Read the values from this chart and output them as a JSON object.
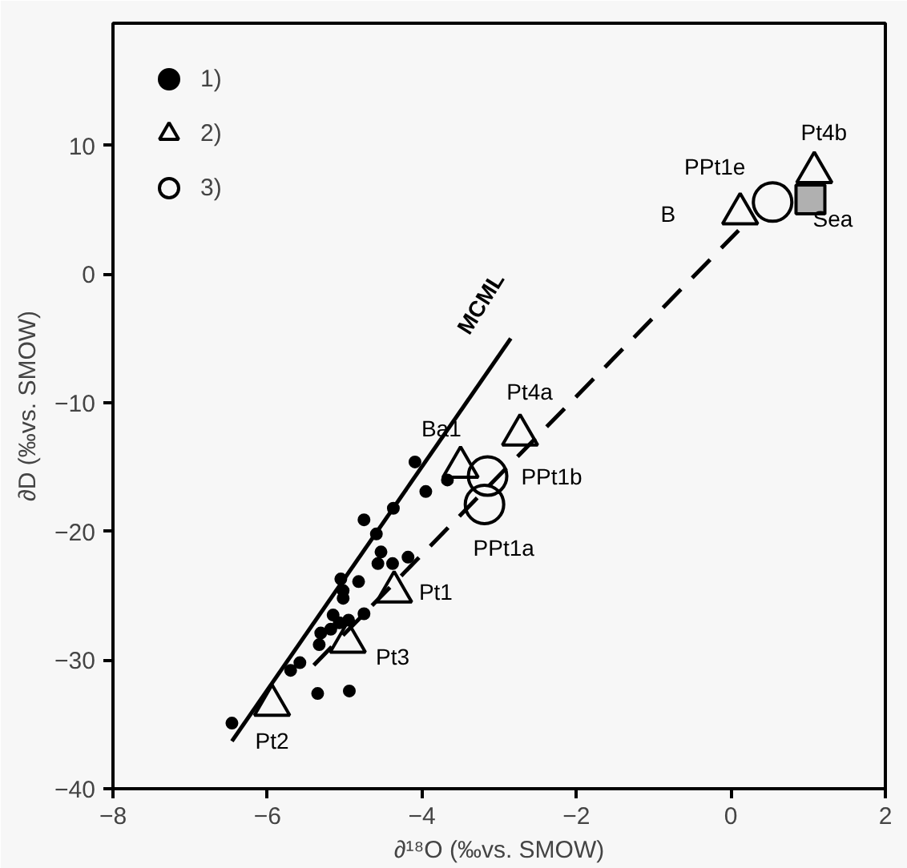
{
  "chart_data": {
    "type": "scatter",
    "xlabel": "∂¹⁸O (‰vs. SMOW)",
    "ylabel": "∂D (‰vs. SMOW)",
    "xlim": [
      -8,
      2
    ],
    "ylim": [
      -40,
      19.5
    ],
    "xticks": [
      -8,
      -6,
      -4,
      -2,
      0,
      2
    ],
    "yticks": [
      -40,
      -30,
      -20,
      -10,
      0,
      10
    ],
    "grid": false,
    "legend": "top left",
    "series": [
      {
        "name": "1)",
        "marker": "circle",
        "color": "#000000",
        "x": [
          -4.09,
          -3.95,
          -3.67,
          -4.37,
          -4.75,
          -4.59,
          -4.53,
          -4.57,
          -4.38,
          -4.18,
          -5.05,
          -4.82,
          -5.02,
          -5.02,
          -4.75,
          -5.15,
          -5.07,
          -4.95,
          -5.31,
          -5.18,
          -5.33,
          -5.58,
          -5.7,
          -5.35,
          -4.94,
          -6.46
        ],
        "values": [
          -14.6,
          -16.9,
          -16.0,
          -18.2,
          -19.1,
          -20.2,
          -21.6,
          -22.5,
          -22.5,
          -22.0,
          -23.7,
          -23.9,
          -24.6,
          -25.2,
          -26.4,
          -26.5,
          -27.1,
          -26.9,
          -27.9,
          -27.6,
          -28.8,
          -30.2,
          -30.8,
          -32.6,
          -32.4,
          -34.9
        ]
      },
      {
        "name": "2)",
        "marker": "triangle",
        "color": "#000000",
        "x": [
          -5.94,
          -4.96,
          -4.36,
          -2.73,
          -3.5,
          0.12,
          1.08
        ],
        "values": [
          -33.5,
          -28.6,
          -24.7,
          -12.5,
          -15.0,
          4.7,
          7.9
        ]
      },
      {
        "name": "3)",
        "marker": "circle",
        "color": "#000000",
        "x": [
          -3.15,
          -3.19,
          0.54
        ],
        "values": [
          -15.7,
          -17.9,
          5.6
        ]
      },
      {
        "marker": "square",
        "color": "#b0b0b0",
        "x": [
          1.03
        ],
        "values": [
          5.8
        ]
      },
      {
        "type": "line",
        "line_style": "solid",
        "color": "#000000",
        "x": [
          -6.46,
          -2.85
        ],
        "values": [
          -36.3,
          -5.0
        ]
      },
      {
        "type": "line",
        "line_style": "dashed",
        "color": "#000000",
        "x": [
          -5.4,
          0.1
        ],
        "values": [
          -30.4,
          3.4
        ]
      }
    ],
    "annotations": [
      "Pt4b",
      "PPt1e",
      "B",
      "Sea",
      "Pt4a",
      "Ba1",
      "PPt1b",
      "PPt1a",
      "Pt1",
      "Pt3",
      "Pt2",
      "MCML"
    ]
  }
}
